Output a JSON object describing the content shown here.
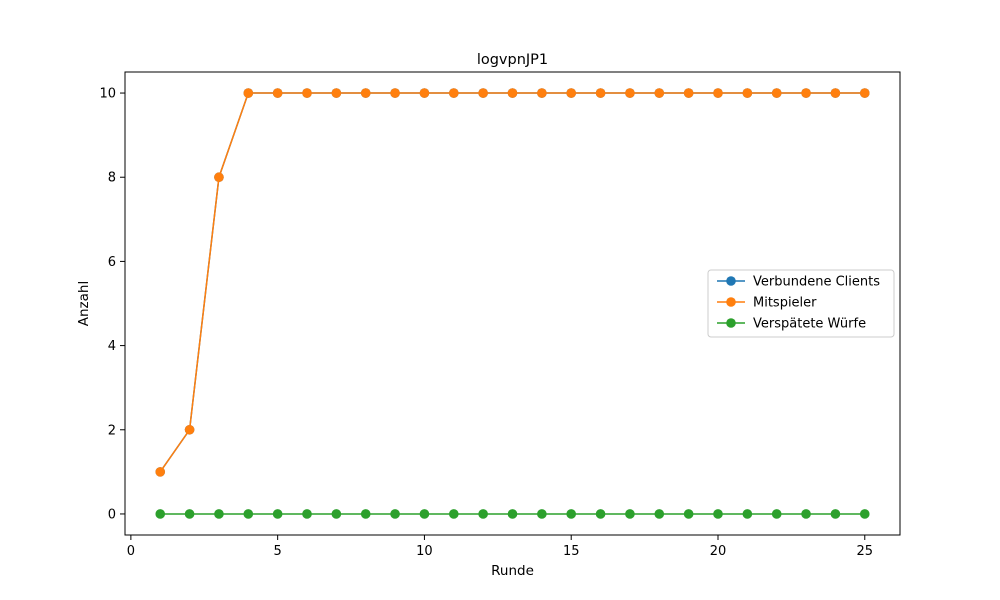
{
  "chart_data": {
    "type": "line",
    "title": "logvpnJP1",
    "xlabel": "Runde",
    "ylabel": "Anzahl",
    "x": [
      1,
      2,
      3,
      4,
      5,
      6,
      7,
      8,
      9,
      10,
      11,
      12,
      13,
      14,
      15,
      16,
      17,
      18,
      19,
      20,
      21,
      22,
      23,
      24,
      25
    ],
    "xlim": [
      -0.2,
      26.2
    ],
    "ylim": [
      -0.5,
      10.5
    ],
    "xticks": [
      0,
      5,
      10,
      15,
      20,
      25
    ],
    "yticks": [
      0,
      2,
      4,
      6,
      8,
      10
    ],
    "grid": false,
    "legend_position": "center right",
    "series": [
      {
        "name": "Verbundene Clients",
        "color": "#1f77b4",
        "values": [
          1,
          2,
          8,
          10,
          10,
          10,
          10,
          10,
          10,
          10,
          10,
          10,
          10,
          10,
          10,
          10,
          10,
          10,
          10,
          10,
          10,
          10,
          10,
          10,
          10
        ]
      },
      {
        "name": "Mitspieler",
        "color": "#ff7f0e",
        "values": [
          1,
          2,
          8,
          10,
          10,
          10,
          10,
          10,
          10,
          10,
          10,
          10,
          10,
          10,
          10,
          10,
          10,
          10,
          10,
          10,
          10,
          10,
          10,
          10,
          10
        ]
      },
      {
        "name": "Verspätete Würfe",
        "color": "#2ca02c",
        "values": [
          0,
          0,
          0,
          0,
          0,
          0,
          0,
          0,
          0,
          0,
          0,
          0,
          0,
          0,
          0,
          0,
          0,
          0,
          0,
          0,
          0,
          0,
          0,
          0,
          0
        ]
      }
    ]
  }
}
